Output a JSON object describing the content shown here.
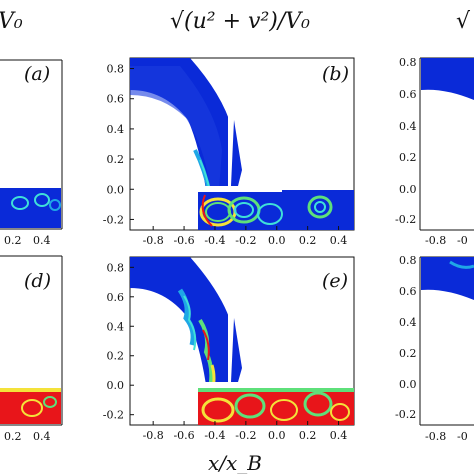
{
  "figure": {
    "titles": [
      {
        "id": "left",
        "text": "V₀"
      },
      {
        "id": "center",
        "text": "√(u² + v²)/V₀"
      },
      {
        "id": "right",
        "text": "√"
      }
    ],
    "x_axis_label": "x/x_B",
    "panel_labels": [
      "(a)",
      "(b)",
      "(d)",
      "(e)"
    ],
    "x_ticks": [
      "-0.8",
      "-0.6",
      "-0.4",
      "-0.2",
      "0.0",
      "0.2",
      "0.4"
    ],
    "y_ticks": [
      "0.8",
      "0.6",
      "0.4",
      "0.2",
      "0.0",
      "-0.2"
    ],
    "left_partial_x_ticks": [
      "0.2",
      "0.4"
    ],
    "right_partial_x_ticks": [
      "-0.8",
      "-0"
    ]
  },
  "colors": {
    "field_low": "#0a2ad8",
    "field_mid": "#1fa7e6",
    "field_cyan": "#3fe0d8",
    "field_green": "#5ee07a",
    "field_yellow": "#f4e23a",
    "field_red": "#e8151a",
    "wall": "#ffffff",
    "axis": "#111111"
  },
  "chart_data": {
    "type": "heatmap",
    "quantity": "√(u² + v²)/V₀",
    "xlabel": "x/x_B",
    "xlim": [
      -0.95,
      0.5
    ],
    "ylim": [
      -0.27,
      0.87
    ],
    "panels": [
      {
        "label": "(a)",
        "visible": "partial"
      },
      {
        "label": "(b)",
        "visible": "full"
      },
      {
        "label": "(d)",
        "visible": "partial"
      },
      {
        "label": "(e)",
        "visible": "full"
      }
    ]
  }
}
